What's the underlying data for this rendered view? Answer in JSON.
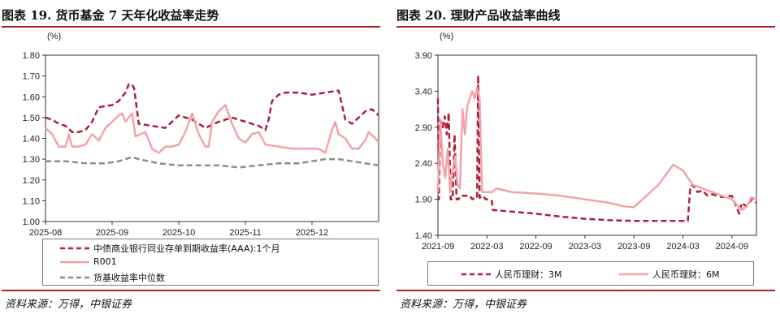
{
  "figures": [
    {
      "title": "图表 19. 货币基金 7 天年化收益率走势",
      "source": "资料来源：万得，中银证券",
      "legend": [
        "中债商业银行同业存单到期收益率(AAA):1个月",
        "R001",
        "货基收益率中位数"
      ]
    },
    {
      "title": "图表 20. 理财产品收益率曲线",
      "source": "资料来源：万得，中银证券",
      "legend": [
        "人民币理财：3M",
        "人民币理财：6M"
      ]
    }
  ],
  "chart_data": [
    {
      "type": "line",
      "title": "货币基金 7 天年化收益率走势",
      "ylabel": "(%)",
      "xlabel": "",
      "ylim": [
        1.0,
        1.8
      ],
      "yticks": [
        "1.00",
        "1.10",
        "1.20",
        "1.30",
        "1.40",
        "1.50",
        "1.60",
        "1.70",
        "1.80"
      ],
      "xlim": [
        0,
        5
      ],
      "xticks": [
        0,
        1,
        2,
        3,
        4
      ],
      "xtick_labels": [
        "2025-08",
        "2025-09",
        "2025-10",
        "2025-11",
        "2025-12"
      ],
      "grid": false,
      "series": [
        {
          "name": "中债商业银行同业存单到期收益率(AAA):1个月",
          "color": "#b01e3a",
          "style": "dashed",
          "x": [
            0,
            0.1,
            0.2,
            0.3,
            0.4,
            0.5,
            0.6,
            0.7,
            0.8,
            1.0,
            1.1,
            1.15,
            1.2,
            1.25,
            1.3,
            1.33,
            1.4,
            1.6,
            1.8,
            2.0,
            2.2,
            2.4,
            2.6,
            2.8,
            3.0,
            3.2,
            3.3,
            3.35,
            3.4,
            3.5,
            3.6,
            3.8,
            4.0,
            4.2,
            4.4,
            4.5,
            4.6,
            4.8,
            4.9,
            5.0
          ],
          "values": [
            1.5,
            1.49,
            1.47,
            1.46,
            1.43,
            1.43,
            1.44,
            1.48,
            1.55,
            1.56,
            1.58,
            1.6,
            1.62,
            1.66,
            1.66,
            1.64,
            1.47,
            1.46,
            1.45,
            1.51,
            1.49,
            1.45,
            1.48,
            1.5,
            1.48,
            1.46,
            1.44,
            1.49,
            1.58,
            1.61,
            1.62,
            1.62,
            1.61,
            1.62,
            1.63,
            1.49,
            1.47,
            1.53,
            1.54,
            1.51
          ]
        },
        {
          "name": "R001",
          "color": "#f2a3a8",
          "style": "solid",
          "x": [
            0,
            0.1,
            0.2,
            0.3,
            0.35,
            0.4,
            0.5,
            0.6,
            0.7,
            0.8,
            0.9,
            1.0,
            1.1,
            1.15,
            1.2,
            1.3,
            1.35,
            1.5,
            1.6,
            1.7,
            1.8,
            1.9,
            2.0,
            2.1,
            2.2,
            2.3,
            2.4,
            2.45,
            2.5,
            2.6,
            2.7,
            2.8,
            2.9,
            3.0,
            3.1,
            3.2,
            3.3,
            3.5,
            3.7,
            3.9,
            4.0,
            4.1,
            4.2,
            4.3,
            4.35,
            4.4,
            4.5,
            4.6,
            4.7,
            4.8,
            4.85,
            4.95,
            5.0
          ],
          "values": [
            1.45,
            1.42,
            1.36,
            1.36,
            1.42,
            1.36,
            1.36,
            1.37,
            1.42,
            1.39,
            1.45,
            1.48,
            1.51,
            1.52,
            1.48,
            1.52,
            1.41,
            1.43,
            1.35,
            1.33,
            1.36,
            1.36,
            1.37,
            1.43,
            1.52,
            1.42,
            1.36,
            1.36,
            1.48,
            1.53,
            1.56,
            1.47,
            1.4,
            1.38,
            1.42,
            1.43,
            1.37,
            1.36,
            1.35,
            1.35,
            1.35,
            1.35,
            1.33,
            1.44,
            1.48,
            1.42,
            1.4,
            1.35,
            1.35,
            1.39,
            1.43,
            1.4,
            1.38
          ]
        },
        {
          "name": "货基收益率中位数",
          "color": "#8c8c8c",
          "style": "dashed",
          "x": [
            0,
            0.3,
            0.6,
            0.9,
            1.1,
            1.2,
            1.3,
            1.4,
            1.7,
            2.0,
            2.3,
            2.6,
            2.9,
            3.2,
            3.5,
            3.8,
            4.0,
            4.2,
            4.4,
            4.6,
            4.8,
            5.0
          ],
          "values": [
            1.29,
            1.29,
            1.28,
            1.28,
            1.29,
            1.3,
            1.31,
            1.3,
            1.28,
            1.27,
            1.27,
            1.27,
            1.26,
            1.27,
            1.28,
            1.28,
            1.29,
            1.3,
            1.3,
            1.29,
            1.28,
            1.27
          ]
        }
      ]
    },
    {
      "type": "line",
      "title": "理财产品收益率曲线",
      "ylabel": "(%)",
      "xlabel": "",
      "ylim": [
        1.4,
        3.9
      ],
      "yticks": [
        "1.40",
        "1.90",
        "2.40",
        "2.90",
        "3.40",
        "3.90"
      ],
      "xlim": [
        0,
        6.5
      ],
      "xticks": [
        0,
        1,
        2,
        3,
        4,
        5,
        6
      ],
      "xtick_labels": [
        "2021-09",
        "2022-03",
        "2022-09",
        "2023-03",
        "2023-09",
        "2024-03",
        "2024-09"
      ],
      "grid": false,
      "series": [
        {
          "name": "人民币理财：3M",
          "color": "#b01e3a",
          "style": "dashed",
          "x": [
            0,
            0.02,
            0.05,
            0.1,
            0.14,
            0.18,
            0.22,
            0.26,
            0.3,
            0.34,
            0.38,
            0.42,
            0.46,
            0.5,
            0.55,
            0.6,
            0.65,
            0.7,
            0.75,
            0.8,
            0.82,
            0.85,
            0.9,
            0.94,
            0.97,
            1.0,
            1.05,
            1.1,
            1.12,
            1.5,
            2.0,
            2.5,
            3.0,
            3.5,
            4.0,
            4.5,
            5.0,
            5.1,
            5.15,
            5.2,
            5.3,
            5.4,
            5.5,
            5.6,
            5.8,
            6.0,
            6.15,
            6.2,
            6.3,
            6.4,
            6.45,
            6.5
          ],
          "values": [
            3.3,
            1.9,
            3.0,
            2.9,
            3.05,
            2.8,
            3.1,
            1.9,
            1.9,
            2.8,
            1.9,
            1.9,
            1.95,
            1.95,
            1.95,
            1.95,
            1.95,
            1.9,
            1.92,
            1.92,
            3.62,
            1.92,
            1.95,
            1.93,
            1.9,
            1.9,
            1.9,
            1.88,
            1.75,
            1.73,
            1.7,
            1.66,
            1.63,
            1.61,
            1.6,
            1.6,
            1.6,
            1.6,
            2.08,
            2.1,
            2.0,
            2.02,
            1.95,
            1.97,
            1.93,
            1.95,
            1.7,
            1.85,
            1.8,
            1.9,
            1.88,
            1.85
          ]
        },
        {
          "name": "人民币理财：6M",
          "color": "#f2a3a8",
          "style": "solid",
          "x": [
            0,
            0.05,
            0.1,
            0.15,
            0.2,
            0.25,
            0.3,
            0.35,
            0.4,
            0.45,
            0.5,
            0.55,
            0.6,
            0.65,
            0.7,
            0.75,
            0.8,
            0.85,
            0.9,
            1.0,
            1.1,
            1.2,
            1.5,
            2.0,
            2.5,
            3.0,
            3.5,
            3.8,
            4.0,
            4.5,
            4.8,
            5.0,
            5.2,
            5.4,
            5.6,
            5.8,
            6.0,
            6.2,
            6.3,
            6.4,
            6.5
          ],
          "values": [
            2.0,
            3.0,
            2.4,
            2.2,
            2.6,
            2.0,
            2.3,
            2.5,
            2.1,
            2.05,
            3.15,
            2.8,
            3.2,
            3.3,
            3.4,
            3.3,
            3.45,
            3.3,
            2.0,
            2.0,
            2.0,
            2.05,
            2.0,
            1.98,
            1.95,
            1.9,
            1.85,
            1.8,
            1.79,
            2.1,
            2.38,
            2.3,
            2.1,
            2.05,
            2.0,
            1.95,
            1.9,
            1.75,
            1.8,
            1.93,
            1.9
          ]
        }
      ]
    }
  ]
}
